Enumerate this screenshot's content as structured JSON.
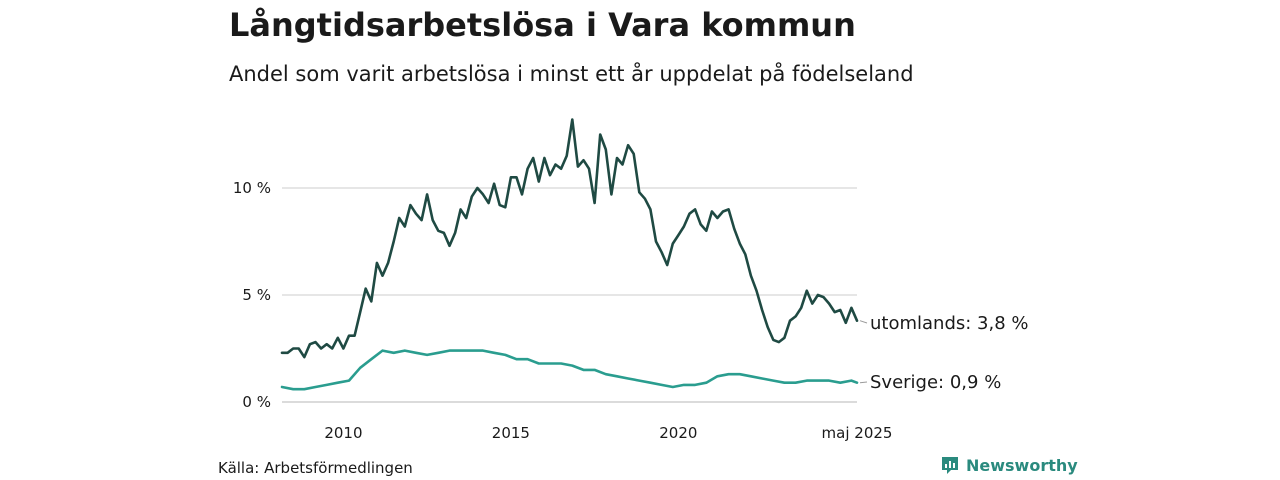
{
  "title": "Långtidsarbetslösa i Vara kommun",
  "subtitle": "Andel som varit arbetslösa i minst ett år uppdelat på födelseland",
  "source": "Källa: Arbetsförmedlingen",
  "brand": {
    "name": "Newsworthy",
    "icon": "bar-chart-icon",
    "color": "#2a8a7e"
  },
  "chart_data": {
    "type": "line",
    "title": "Långtidsarbetslösa i Vara kommun",
    "subtitle": "Andel som varit arbetslösa i minst ett år uppdelat på födelseland",
    "xlabel": "",
    "ylabel": "",
    "x_range": [
      "2008-03",
      "2025-05"
    ],
    "ylim": [
      0,
      13.5
    ],
    "y_ticks": [
      {
        "value": 0,
        "label": "0 %"
      },
      {
        "value": 5,
        "label": "5 %"
      },
      {
        "value": 10,
        "label": "10 %"
      }
    ],
    "x_ticks": [
      {
        "value": "2010-01",
        "label": "2010"
      },
      {
        "value": "2015-01",
        "label": "2015"
      },
      {
        "value": "2020-01",
        "label": "2020"
      },
      {
        "value": "2025-05",
        "label": "maj 2025"
      }
    ],
    "grid": "horizontal",
    "series": [
      {
        "name": "utomlands",
        "end_label": "utomlands: 3,8 %",
        "color": "#1f4a43",
        "points": [
          [
            "2008-03",
            2.3
          ],
          [
            "2008-05",
            2.3
          ],
          [
            "2008-07",
            2.5
          ],
          [
            "2008-09",
            2.5
          ],
          [
            "2008-11",
            2.1
          ],
          [
            "2009-01",
            2.7
          ],
          [
            "2009-03",
            2.8
          ],
          [
            "2009-05",
            2.5
          ],
          [
            "2009-07",
            2.7
          ],
          [
            "2009-09",
            2.5
          ],
          [
            "2009-11",
            3.0
          ],
          [
            "2010-01",
            2.5
          ],
          [
            "2010-03",
            3.1
          ],
          [
            "2010-05",
            3.1
          ],
          [
            "2010-07",
            4.2
          ],
          [
            "2010-09",
            5.3
          ],
          [
            "2010-11",
            4.7
          ],
          [
            "2011-01",
            6.5
          ],
          [
            "2011-03",
            5.9
          ],
          [
            "2011-05",
            6.5
          ],
          [
            "2011-07",
            7.5
          ],
          [
            "2011-09",
            8.6
          ],
          [
            "2011-11",
            8.2
          ],
          [
            "2012-01",
            9.2
          ],
          [
            "2012-03",
            8.8
          ],
          [
            "2012-05",
            8.5
          ],
          [
            "2012-07",
            9.7
          ],
          [
            "2012-09",
            8.5
          ],
          [
            "2012-11",
            8.0
          ],
          [
            "2013-01",
            7.9
          ],
          [
            "2013-03",
            7.3
          ],
          [
            "2013-05",
            7.9
          ],
          [
            "2013-07",
            9.0
          ],
          [
            "2013-09",
            8.6
          ],
          [
            "2013-11",
            9.6
          ],
          [
            "2014-01",
            10.0
          ],
          [
            "2014-03",
            9.7
          ],
          [
            "2014-05",
            9.3
          ],
          [
            "2014-07",
            10.2
          ],
          [
            "2014-09",
            9.2
          ],
          [
            "2014-11",
            9.1
          ],
          [
            "2015-01",
            10.5
          ],
          [
            "2015-03",
            10.5
          ],
          [
            "2015-05",
            9.7
          ],
          [
            "2015-07",
            10.9
          ],
          [
            "2015-09",
            11.4
          ],
          [
            "2015-11",
            10.3
          ],
          [
            "2016-01",
            11.4
          ],
          [
            "2016-03",
            10.6
          ],
          [
            "2016-05",
            11.1
          ],
          [
            "2016-07",
            10.9
          ],
          [
            "2016-09",
            11.5
          ],
          [
            "2016-11",
            13.2
          ],
          [
            "2017-01",
            11.0
          ],
          [
            "2017-03",
            11.3
          ],
          [
            "2017-05",
            10.9
          ],
          [
            "2017-07",
            9.3
          ],
          [
            "2017-09",
            12.5
          ],
          [
            "2017-11",
            11.8
          ],
          [
            "2018-01",
            9.7
          ],
          [
            "2018-03",
            11.4
          ],
          [
            "2018-05",
            11.1
          ],
          [
            "2018-07",
            12.0
          ],
          [
            "2018-09",
            11.6
          ],
          [
            "2018-11",
            9.8
          ],
          [
            "2019-01",
            9.5
          ],
          [
            "2019-03",
            9.0
          ],
          [
            "2019-05",
            7.5
          ],
          [
            "2019-07",
            7.0
          ],
          [
            "2019-09",
            6.4
          ],
          [
            "2019-11",
            7.4
          ],
          [
            "2020-01",
            7.8
          ],
          [
            "2020-03",
            8.2
          ],
          [
            "2020-05",
            8.8
          ],
          [
            "2020-07",
            9.0
          ],
          [
            "2020-09",
            8.3
          ],
          [
            "2020-11",
            8.0
          ],
          [
            "2021-01",
            8.9
          ],
          [
            "2021-03",
            8.6
          ],
          [
            "2021-05",
            8.9
          ],
          [
            "2021-07",
            9.0
          ],
          [
            "2021-09",
            8.1
          ],
          [
            "2021-11",
            7.4
          ],
          [
            "2022-01",
            6.9
          ],
          [
            "2022-03",
            5.9
          ],
          [
            "2022-05",
            5.2
          ],
          [
            "2022-07",
            4.3
          ],
          [
            "2022-09",
            3.5
          ],
          [
            "2022-11",
            2.9
          ],
          [
            "2023-01",
            2.8
          ],
          [
            "2023-03",
            3.0
          ],
          [
            "2023-05",
            3.8
          ],
          [
            "2023-07",
            4.0
          ],
          [
            "2023-09",
            4.4
          ],
          [
            "2023-11",
            5.2
          ],
          [
            "2024-01",
            4.6
          ],
          [
            "2024-03",
            5.0
          ],
          [
            "2024-05",
            4.9
          ],
          [
            "2024-07",
            4.6
          ],
          [
            "2024-09",
            4.2
          ],
          [
            "2024-11",
            4.3
          ],
          [
            "2025-01",
            3.7
          ],
          [
            "2025-03",
            4.4
          ],
          [
            "2025-05",
            3.8
          ]
        ]
      },
      {
        "name": "Sverige",
        "end_label": "Sverige: 0,9 %",
        "color": "#2a9d8f",
        "points": [
          [
            "2008-03",
            0.7
          ],
          [
            "2008-07",
            0.6
          ],
          [
            "2008-11",
            0.6
          ],
          [
            "2009-03",
            0.7
          ],
          [
            "2009-07",
            0.8
          ],
          [
            "2009-11",
            0.9
          ],
          [
            "2010-03",
            1.0
          ],
          [
            "2010-07",
            1.6
          ],
          [
            "2010-11",
            2.0
          ],
          [
            "2011-03",
            2.4
          ],
          [
            "2011-07",
            2.3
          ],
          [
            "2011-11",
            2.4
          ],
          [
            "2012-03",
            2.3
          ],
          [
            "2012-07",
            2.2
          ],
          [
            "2012-11",
            2.3
          ],
          [
            "2013-03",
            2.4
          ],
          [
            "2013-07",
            2.4
          ],
          [
            "2013-11",
            2.4
          ],
          [
            "2014-03",
            2.4
          ],
          [
            "2014-07",
            2.3
          ],
          [
            "2014-11",
            2.2
          ],
          [
            "2015-03",
            2.0
          ],
          [
            "2015-07",
            2.0
          ],
          [
            "2015-11",
            1.8
          ],
          [
            "2016-03",
            1.8
          ],
          [
            "2016-07",
            1.8
          ],
          [
            "2016-11",
            1.7
          ],
          [
            "2017-03",
            1.5
          ],
          [
            "2017-07",
            1.5
          ],
          [
            "2017-11",
            1.3
          ],
          [
            "2018-03",
            1.2
          ],
          [
            "2018-07",
            1.1
          ],
          [
            "2018-11",
            1.0
          ],
          [
            "2019-03",
            0.9
          ],
          [
            "2019-07",
            0.8
          ],
          [
            "2019-11",
            0.7
          ],
          [
            "2020-03",
            0.8
          ],
          [
            "2020-07",
            0.8
          ],
          [
            "2020-11",
            0.9
          ],
          [
            "2021-03",
            1.2
          ],
          [
            "2021-07",
            1.3
          ],
          [
            "2021-11",
            1.3
          ],
          [
            "2022-03",
            1.2
          ],
          [
            "2022-07",
            1.1
          ],
          [
            "2022-11",
            1.0
          ],
          [
            "2023-03",
            0.9
          ],
          [
            "2023-07",
            0.9
          ],
          [
            "2023-11",
            1.0
          ],
          [
            "2024-03",
            1.0
          ],
          [
            "2024-07",
            1.0
          ],
          [
            "2024-11",
            0.9
          ],
          [
            "2025-03",
            1.0
          ],
          [
            "2025-05",
            0.9
          ]
        ]
      }
    ]
  }
}
